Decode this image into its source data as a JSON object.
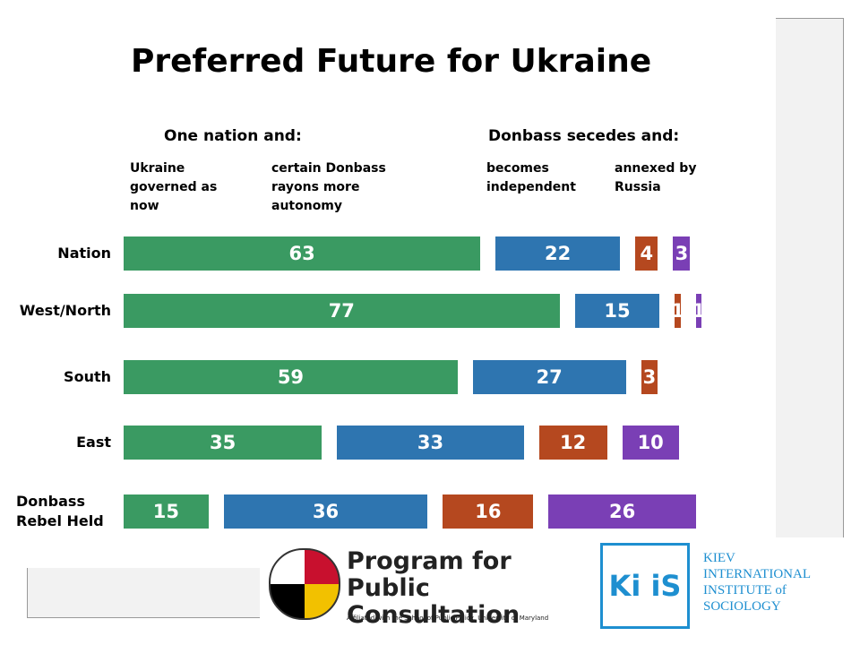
{
  "chart_data": {
    "type": "bar",
    "title": "Preferred Future for Ukraine",
    "groups": [
      "One nation and:",
      "Donbass secedes and:"
    ],
    "categories": [
      "Nation",
      "West/North",
      "South",
      "East",
      "Donbass Rebel Held"
    ],
    "series": [
      {
        "name": "Ukraine governed as now",
        "color": "#3a9a62",
        "values": [
          63,
          77,
          59,
          35,
          15
        ]
      },
      {
        "name": "certain Donbass rayons more autonomy",
        "color": "#2e75b0",
        "values": [
          22,
          15,
          27,
          33,
          36
        ]
      },
      {
        "name": "becomes independent",
        "color": "#b5481f",
        "values": [
          4,
          1,
          3,
          12,
          16
        ]
      },
      {
        "name": "annexed by Russia",
        "color": "#7a3fb5",
        "values": [
          3,
          1,
          null,
          10,
          26
        ]
      }
    ]
  },
  "footer": {
    "ppc_title": "Program for Public Consultation",
    "ppc_subtitle": "Affiliated with the School of Public Policy, University of Maryland",
    "kiis_abbr": "Ki iS",
    "kiis_name": "KIEV INTERNATIONAL INSTITUTE of SOCIOLOGY"
  }
}
